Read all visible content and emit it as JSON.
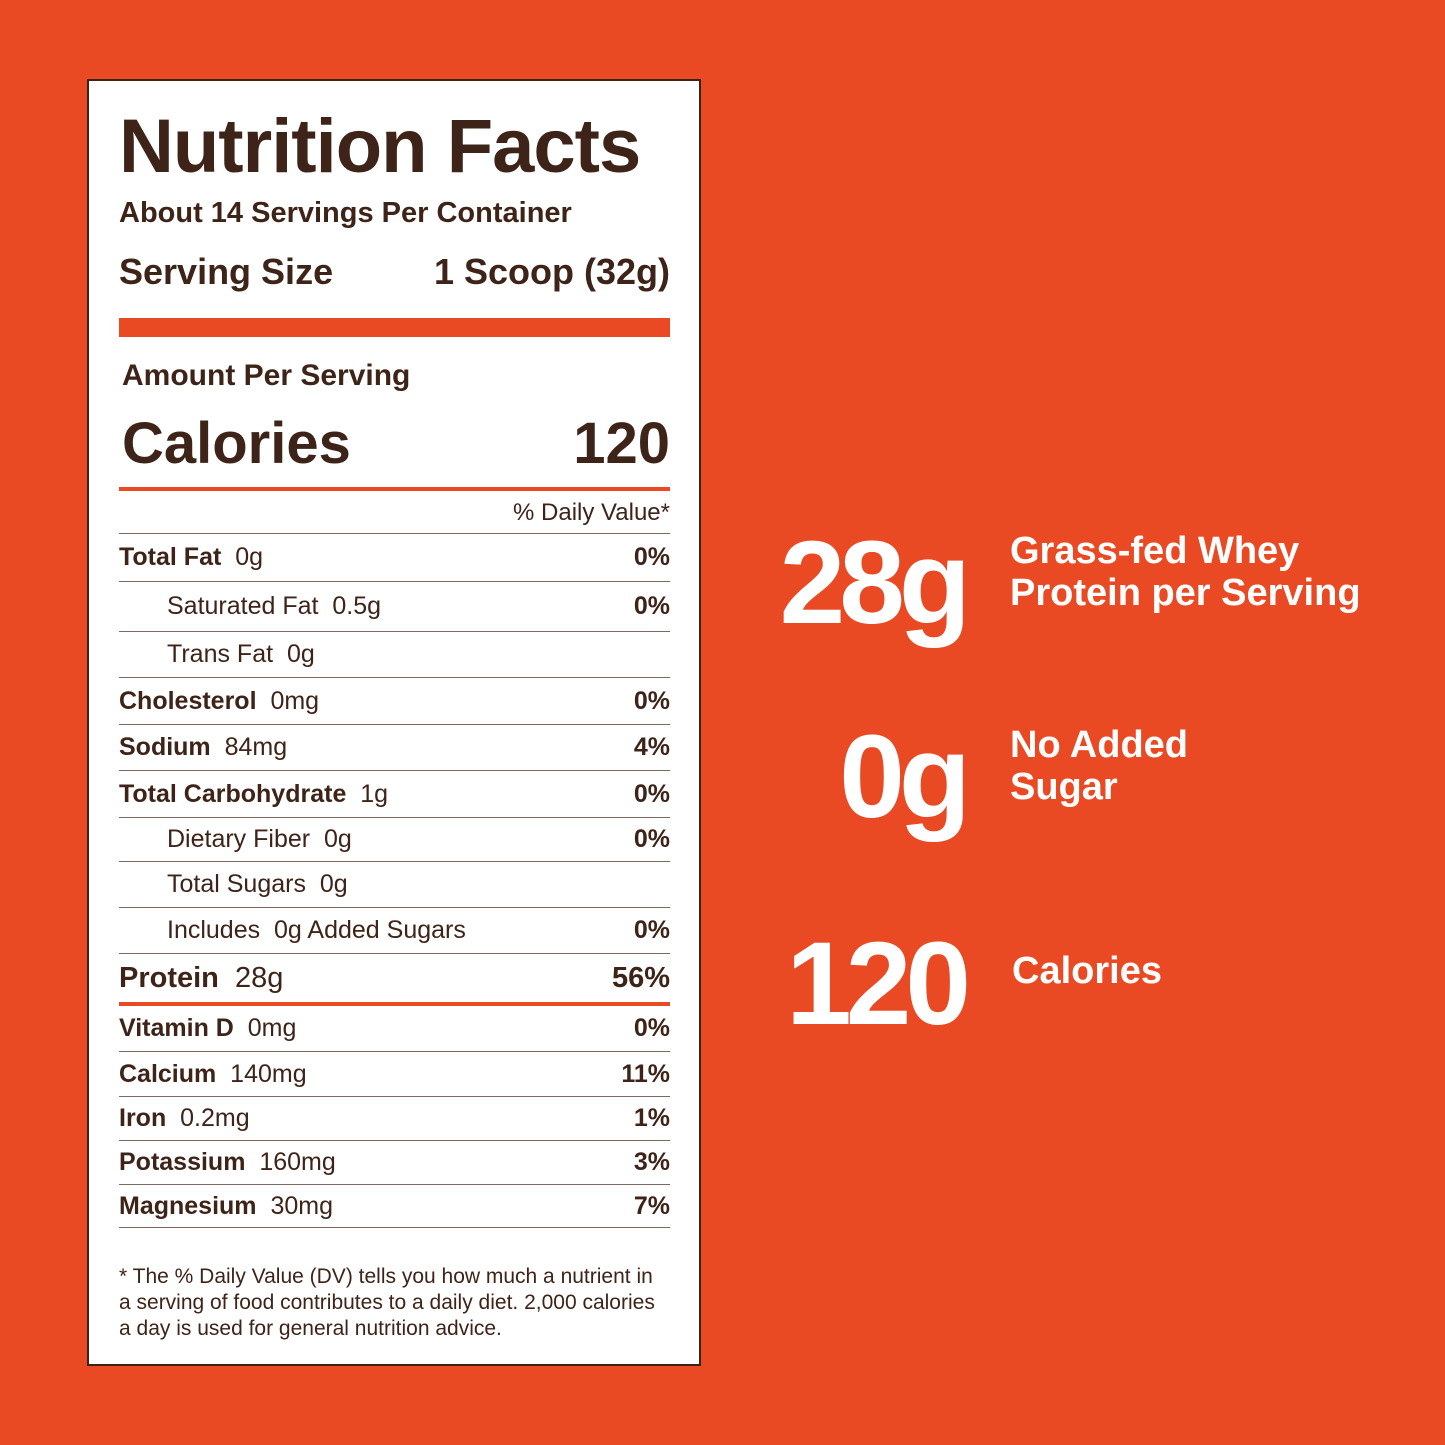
{
  "label": {
    "title": "Nutrition Facts",
    "servings_per_container": "About 14 Servings Per Container",
    "serving_size_label": "Serving Size",
    "serving_size_value": "1 Scoop (32g)",
    "amount_per_serving": "Amount Per Serving",
    "calories_label": "Calories",
    "calories_value": "120",
    "daily_value_header": "% Daily Value*",
    "rows": [
      {
        "name": "Total Fat",
        "amount": "0g",
        "dv": "0%"
      },
      {
        "name": "Saturated Fat",
        "amount": "0.5g",
        "dv": "0%"
      },
      {
        "name": "Trans Fat",
        "amount": "0g",
        "dv": ""
      },
      {
        "name": "Cholesterol",
        "amount": "0mg",
        "dv": "0%"
      },
      {
        "name": "Sodium",
        "amount": "84mg",
        "dv": "4%"
      },
      {
        "name": "Total Carbohydrate",
        "amount": "1g",
        "dv": "0%"
      },
      {
        "name": "Dietary Fiber",
        "amount": "0g",
        "dv": "0%"
      },
      {
        "name": "Total Sugars",
        "amount": "0g",
        "dv": ""
      },
      {
        "name": "Includes",
        "amount": "0g Added Sugars",
        "dv": "0%"
      },
      {
        "name": "Protein",
        "amount": "28g",
        "dv": "56%"
      },
      {
        "name": "Vitamin D",
        "amount": "0mg",
        "dv": "0%"
      },
      {
        "name": "Calcium",
        "amount": "140mg",
        "dv": "11%"
      },
      {
        "name": "Iron",
        "amount": "0.2mg",
        "dv": "1%"
      },
      {
        "name": "Potassium",
        "amount": "160mg",
        "dv": "3%"
      },
      {
        "name": "Magnesium",
        "amount": "30mg",
        "dv": "7%"
      }
    ],
    "footnote": "* The % Daily Value (DV) tells you how much a nutrient in a serving of food contributes to a daily diet. 2,000 calories a day is used for general nutrition advice."
  },
  "highlights": [
    {
      "value": "28g",
      "text_line1": "Grass-fed Whey",
      "text_line2": "Protein per Serving"
    },
    {
      "value": "0g",
      "text_line1": "No Added",
      "text_line2": "Sugar"
    },
    {
      "value": "120",
      "text_line1": "Calories",
      "text_line2": ""
    }
  ],
  "colors": {
    "background": "#e94a24",
    "label_text": "#3e2418",
    "accent_rule": "#e94a24",
    "highlight_text": "#ffffff"
  }
}
